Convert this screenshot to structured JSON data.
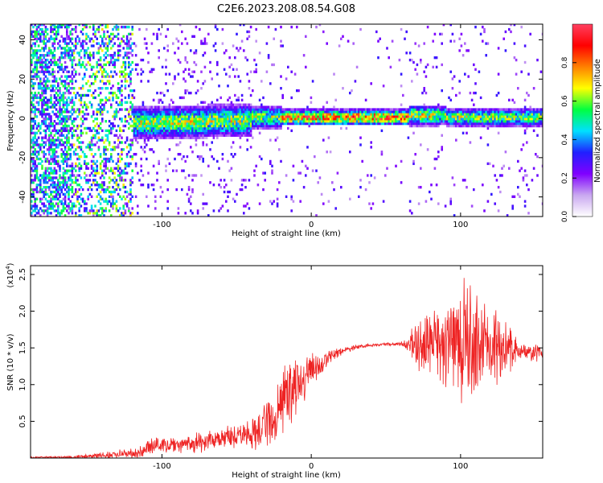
{
  "title": "C2E6.2023.208.08.54.G08",
  "chart_data": [
    {
      "type": "heatmap",
      "xlabel": "Height of straight line (km)",
      "ylabel": "Frequency (Hz)",
      "xlim": [
        -188,
        155
      ],
      "ylim": [
        -50,
        48
      ],
      "xticks": [
        -100,
        0,
        100
      ],
      "xtick_labels": [
        "-100",
        "0",
        "100"
      ],
      "yticks": [
        -40,
        -20,
        0,
        20,
        40
      ],
      "ytick_labels": [
        "-40",
        "-20",
        "0",
        "20",
        "40"
      ],
      "colorbar": {
        "label": "Normalized spectral amplitude",
        "range": [
          0,
          1
        ],
        "ticks": [
          0.0,
          0.2,
          0.4,
          0.6,
          0.8
        ],
        "tick_labels": [
          "0.0",
          "0.2",
          "0.4",
          "0.6",
          "0.8"
        ],
        "colors": [
          "#ffffff",
          "#c9a8f0",
          "#8000ff",
          "#2020ff",
          "#00e0ff",
          "#00ff40",
          "#ffff00",
          "#ff8000",
          "#ff0000",
          "#ff4060"
        ]
      },
      "grid": false
    },
    {
      "type": "line",
      "xlabel": "Height of straight line (km)",
      "ylabel": "SNR (10 * v/v)",
      "yscale_label": "(x10",
      "yscale_exp": "4",
      "yscale_close": ")",
      "xlim": [
        -188,
        155
      ],
      "ylim": [
        0,
        2.62
      ],
      "xticks": [
        -100,
        0,
        100
      ],
      "xtick_labels": [
        "-100",
        "0",
        "100"
      ],
      "yticks": [
        0.5,
        1.0,
        1.5,
        2.0,
        2.5
      ],
      "ytick_labels": [
        "0.5",
        "1.0",
        "1.5",
        "2.0",
        "2.5"
      ],
      "series": [
        {
          "color": "#ee2222",
          "envelope": {
            "x": [
              -188,
              -160,
              -130,
              -112,
              -110,
              -90,
              -70,
              -50,
              -40,
              -30,
              -25,
              -20,
              -15,
              -10,
              -5,
              0,
              10,
              20,
              30,
              40,
              50,
              60,
              65,
              70,
              80,
              90,
              100,
              110,
              120,
              130,
              140,
              155
            ],
            "center": [
              0.01,
              0.01,
              0.05,
              0.08,
              0.17,
              0.18,
              0.22,
              0.28,
              0.34,
              0.48,
              0.6,
              0.75,
              0.85,
              0.95,
              1.05,
              1.18,
              1.35,
              1.45,
              1.51,
              1.54,
              1.55,
              1.55,
              1.56,
              1.58,
              1.58,
              1.6,
              1.58,
              1.57,
              1.52,
              1.48,
              1.45,
              1.42
            ],
            "spread": [
              0.01,
              0.02,
              0.05,
              0.08,
              0.1,
              0.1,
              0.12,
              0.16,
              0.22,
              0.3,
              0.34,
              0.38,
              0.4,
              0.35,
              0.28,
              0.22,
              0.1,
              0.05,
              0.03,
              0.02,
              0.02,
              0.03,
              0.12,
              0.28,
              0.45,
              0.6,
              0.7,
              0.65,
              0.5,
              0.32,
              0.15,
              0.08
            ]
          }
        }
      ],
      "grid": false
    }
  ]
}
